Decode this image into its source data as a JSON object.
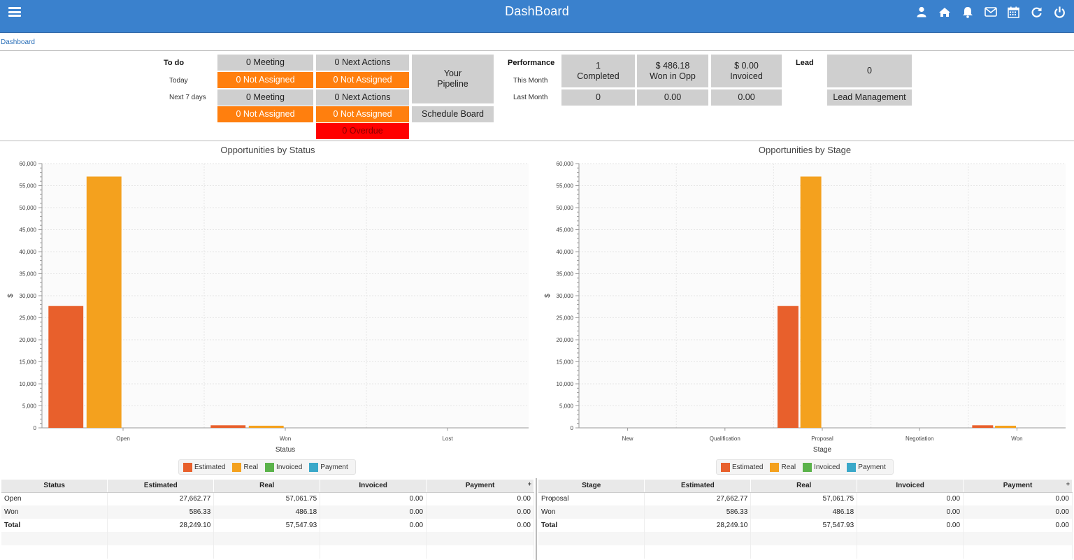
{
  "header": {
    "title": "DashBoard",
    "menu_icon": "hamburger-menu-icon",
    "icons": [
      "user-icon",
      "home-icon",
      "bell-icon",
      "envelope-icon",
      "calendar-icon",
      "refresh-icon",
      "power-icon"
    ]
  },
  "breadcrumb": "Dashboard",
  "todo": {
    "title": "To do",
    "today_label": "Today",
    "next7_label": "Next 7 days",
    "today_meeting": "0 Meeting",
    "today_meeting_na": "0 Not Assigned",
    "today_actions": "0 Next Actions",
    "today_actions_na": "0 Not Assigned",
    "next_meeting": "0 Meeting",
    "next_meeting_na": "0 Not Assigned",
    "next_actions": "0 Next Actions",
    "next_actions_na": "0 Not Assigned",
    "overdue": "0 Overdue",
    "pipeline_line1": "Your",
    "pipeline_line2": "Pipeline",
    "schedule_board": "Schedule Board"
  },
  "performance": {
    "title": "Performance",
    "this_month_label": "This Month",
    "last_month_label": "Last Month",
    "completed_count": "1",
    "completed_label": "Completed",
    "won_amount": "$ 486.18",
    "won_label": "Won in Opp",
    "invoiced_amount": "$ 0.00",
    "invoiced_label": "Invoiced",
    "last_completed": "0",
    "last_won": "0.00",
    "last_invoiced": "0.00"
  },
  "lead": {
    "title": "Lead",
    "count": "0",
    "management": "Lead Management"
  },
  "legend": [
    "Estimated",
    "Real",
    "Invoiced",
    "Payment"
  ],
  "colors": {
    "estimated": "#e8602c",
    "real": "#f4a11e",
    "invoiced": "#5ab24a",
    "payment": "#3aa8c9",
    "header": "#3a81cd",
    "orange_tile": "#ff7f0e",
    "overdue": "#ff0000"
  },
  "chart_data": [
    {
      "type": "bar",
      "title": "Opportunities by Status",
      "xlabel": "Status",
      "ylabel": "$",
      "ylim": [
        0,
        60000
      ],
      "yticks": [
        "0",
        "5,000",
        "10,000",
        "15,000",
        "20,000",
        "25,000",
        "30,000",
        "35,000",
        "40,000",
        "45,000",
        "50,000",
        "55,000",
        "60,000"
      ],
      "categories": [
        "Open",
        "Won",
        "Lost"
      ],
      "series": [
        {
          "name": "Estimated",
          "values": [
            27662.77,
            586.33,
            0
          ]
        },
        {
          "name": "Real",
          "values": [
            57061.75,
            486.18,
            0
          ]
        },
        {
          "name": "Invoiced",
          "values": [
            0,
            0,
            0
          ]
        },
        {
          "name": "Payment",
          "values": [
            0,
            0,
            0
          ]
        }
      ],
      "grid": true,
      "legend": "bottom"
    },
    {
      "type": "bar",
      "title": "Opportunities by Stage",
      "xlabel": "Stage",
      "ylabel": "$",
      "ylim": [
        0,
        60000
      ],
      "yticks": [
        "0",
        "5,000",
        "10,000",
        "15,000",
        "20,000",
        "25,000",
        "30,000",
        "35,000",
        "40,000",
        "45,000",
        "50,000",
        "55,000",
        "60,000"
      ],
      "categories": [
        "New",
        "Qualification",
        "Proposal",
        "Negotiation",
        "Won"
      ],
      "series": [
        {
          "name": "Estimated",
          "values": [
            0,
            0,
            27662.77,
            0,
            586.33
          ]
        },
        {
          "name": "Real",
          "values": [
            0,
            0,
            57061.75,
            0,
            486.18
          ]
        },
        {
          "name": "Invoiced",
          "values": [
            0,
            0,
            0,
            0,
            0
          ]
        },
        {
          "name": "Payment",
          "values": [
            0,
            0,
            0,
            0,
            0
          ]
        }
      ],
      "grid": true,
      "legend": "bottom"
    }
  ],
  "status_table": {
    "headers": [
      "Status",
      "Estimated",
      "Real",
      "Invoiced",
      "Payment"
    ],
    "rows": [
      [
        "Open",
        "27,662.77",
        "57,061.75",
        "0.00",
        "0.00"
      ],
      [
        "Won",
        "586.33",
        "486.18",
        "0.00",
        "0.00"
      ],
      [
        "Total",
        "28,249.10",
        "57,547.93",
        "0.00",
        "0.00"
      ]
    ]
  },
  "stage_table": {
    "headers": [
      "Stage",
      "Estimated",
      "Real",
      "Invoiced",
      "Payment"
    ],
    "rows": [
      [
        "Proposal",
        "27,662.77",
        "57,061.75",
        "0.00",
        "0.00"
      ],
      [
        "Won",
        "586.33",
        "486.18",
        "0.00",
        "0.00"
      ],
      [
        "Total",
        "28,249.10",
        "57,547.93",
        "0.00",
        "0.00"
      ]
    ]
  }
}
